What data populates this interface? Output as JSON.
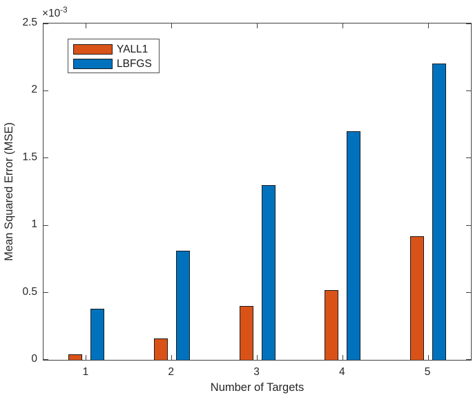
{
  "chart_data": {
    "type": "bar",
    "title": "",
    "xlabel": "Number of Targets",
    "ylabel": "Mean Squared Error (MSE)",
    "categories": [
      "1",
      "2",
      "3",
      "4",
      "5"
    ],
    "series": [
      {
        "name": "YALL1",
        "color": "#D95319",
        "values": [
          0.04,
          0.16,
          0.4,
          0.52,
          0.92
        ]
      },
      {
        "name": "LBFGS",
        "color": "#0072BD",
        "values": [
          0.38,
          0.81,
          1.3,
          1.7,
          2.2
        ]
      }
    ],
    "values_unit": "x10^-3 (all bar values are in units of 10^-3)",
    "ylim": [
      0,
      2.5
    ],
    "yticks": [
      "0",
      "0.5",
      "1",
      "1.5",
      "2",
      "2.5"
    ],
    "y_exponent": {
      "base": "×10",
      "power": "-3"
    },
    "legend_position": "top-left-inside",
    "grid": false,
    "colors": {
      "axis": "#404040",
      "text": "#262626",
      "bar_edge": "#1a1a1a",
      "background": "#ffffff"
    }
  }
}
